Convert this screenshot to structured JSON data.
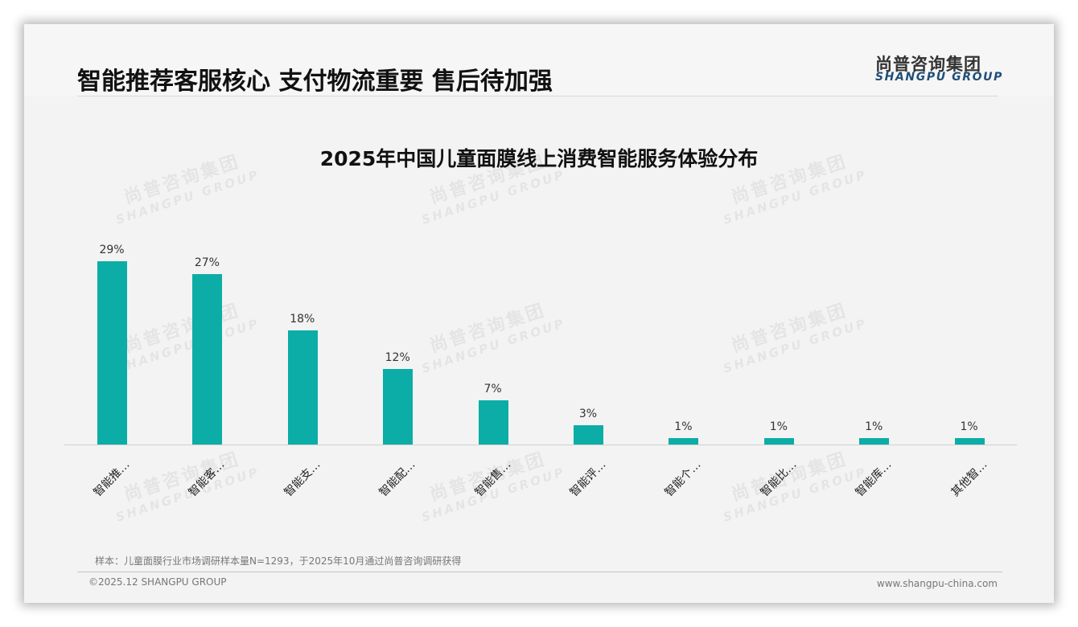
{
  "header": {
    "headline": "智能推荐客服核心 支付物流重要 售后待加强",
    "logo_cn": "尚普咨询集团",
    "logo_en": "SHANGPU GROUP"
  },
  "watermark": {
    "cn": "尚普咨询集团",
    "en": "SHANGPU GROUP"
  },
  "chart_data": {
    "type": "bar",
    "title": "2025年中国儿童面膜线上消费智能服务体验分布",
    "categories": [
      "智能推…",
      "智能客…",
      "智能支…",
      "智能配…",
      "智能售…",
      "智能评…",
      "智能个…",
      "智能比…",
      "智能库…",
      "其他智…"
    ],
    "values": [
      29,
      27,
      18,
      12,
      7,
      3,
      1,
      1,
      1,
      1
    ],
    "value_labels": [
      "29%",
      "27%",
      "18%",
      "12%",
      "7%",
      "3%",
      "1%",
      "1%",
      "1%",
      "1%"
    ],
    "unit": "%",
    "xlabel": "",
    "ylabel": "",
    "ylim": [
      0,
      30
    ],
    "grid": false,
    "legend": "none",
    "bar_color": "#0bada6"
  },
  "footer": {
    "note": "样本：儿童面膜行业市场调研样本量N=1293，于2025年10月通过尚普咨询调研获得",
    "copyright": "©2025.12 SHANGPU GROUP",
    "website": "www.shangpu-china.com"
  }
}
